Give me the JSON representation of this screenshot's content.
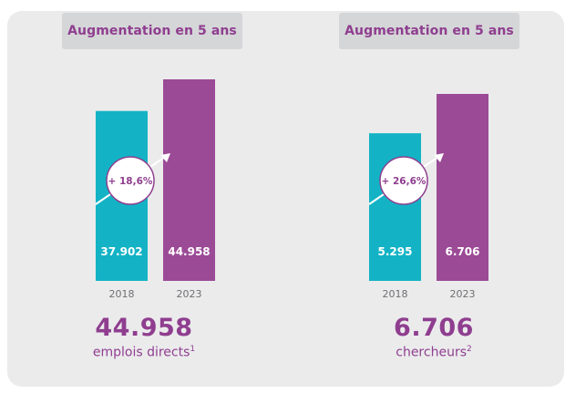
{
  "colors": {
    "series_2018": "#13b3c5",
    "series_2023": "#9b4a96",
    "accent": "#8f3e8f",
    "card_bg": "#ebebec"
  },
  "chart_data": [
    {
      "type": "bar",
      "title": "Augmentation en 5 ans",
      "categories": [
        "2018",
        "2023"
      ],
      "values": [
        37902,
        44958
      ],
      "data_labels": [
        "37.902",
        "44.958"
      ],
      "growth_label": "+ 18,6%",
      "headline": "44.958",
      "caption": "emplois directs",
      "footnote": "1",
      "ylim": [
        0,
        50000
      ],
      "grid": false,
      "icon": "arrow-up-right-icon"
    },
    {
      "type": "bar",
      "title": "Augmentation en 5 ans",
      "categories": [
        "2018",
        "2023"
      ],
      "values": [
        5295,
        6706
      ],
      "data_labels": [
        "5.295",
        "6.706"
      ],
      "growth_label": "+ 26,6%",
      "headline": "6.706",
      "caption": "chercheurs",
      "footnote": "2",
      "ylim": [
        0,
        7500
      ],
      "grid": false,
      "icon": "arrow-up-right-icon"
    }
  ]
}
